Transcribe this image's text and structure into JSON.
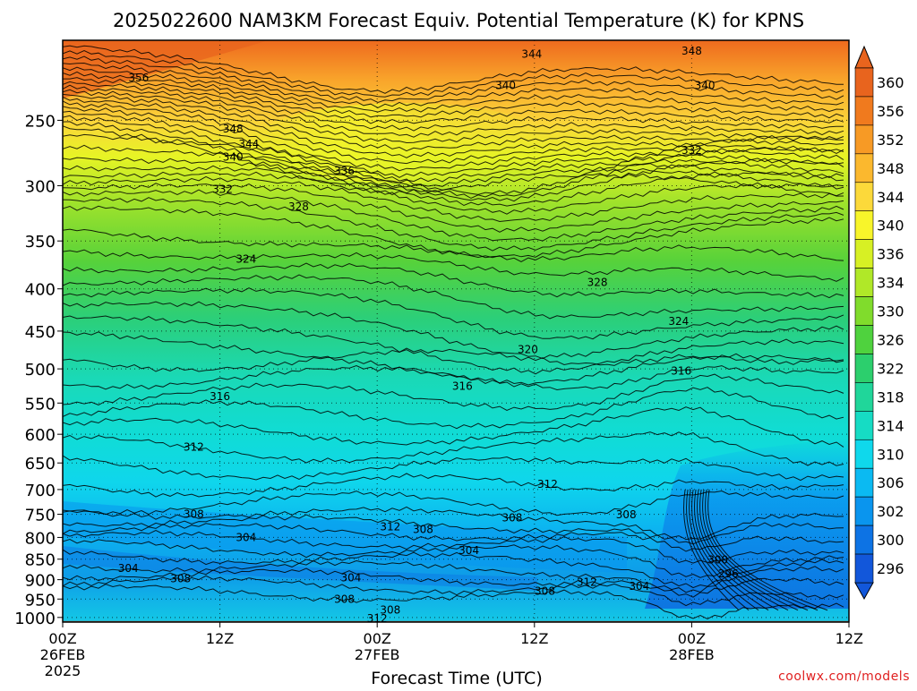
{
  "chart_data": {
    "type": "heatmap",
    "title": "2025022600 NAM3KM Forecast Equiv. Potential Temperature (K) for KPNS",
    "xlabel": "Forecast Time (UTC)",
    "ylabel": "",
    "source_credit": "coolwx.com/models",
    "x_range_hours": [
      0,
      60
    ],
    "x_ticks": [
      {
        "hour": 0,
        "lines": [
          "00Z",
          "26FEB",
          "2025"
        ]
      },
      {
        "hour": 12,
        "lines": [
          "12Z"
        ]
      },
      {
        "hour": 24,
        "lines": [
          "00Z",
          "27FEB"
        ]
      },
      {
        "hour": 36,
        "lines": [
          "12Z"
        ]
      },
      {
        "hour": 48,
        "lines": [
          "00Z",
          "28FEB"
        ]
      },
      {
        "hour": 60,
        "lines": [
          "12Z"
        ]
      }
    ],
    "y_scale": "log-pressure",
    "y_range_hpa": [
      1013,
      200
    ],
    "y_ticks": [
      250,
      300,
      350,
      400,
      450,
      500,
      550,
      600,
      650,
      700,
      750,
      800,
      850,
      900,
      950,
      1000
    ],
    "grid": true,
    "colorbar": {
      "labels": [
        360,
        356,
        352,
        348,
        344,
        340,
        336,
        334,
        330,
        326,
        322,
        318,
        314,
        310,
        306,
        302,
        300,
        296
      ],
      "colors": [
        "#e8641e",
        "#f07a1e",
        "#f79a25",
        "#fbb82e",
        "#fcd93a",
        "#f8f52a",
        "#d7f024",
        "#b0e828",
        "#80dc2c",
        "#4fd23e",
        "#2ccf6d",
        "#20d69a",
        "#16dcc4",
        "#0fd8ec",
        "#0bbaf2",
        "#0a95ee",
        "#0d73e4",
        "#1257da"
      ]
    },
    "contour_labels": [
      {
        "value": "356",
        "hour": 5.8,
        "hpa": 222
      },
      {
        "value": "348",
        "hour": 13.0,
        "hpa": 256
      },
      {
        "value": "344",
        "hour": 14.2,
        "hpa": 267
      },
      {
        "value": "340",
        "hour": 13.0,
        "hpa": 277
      },
      {
        "value": "336",
        "hour": 21.5,
        "hpa": 288
      },
      {
        "value": "332",
        "hour": 12.2,
        "hpa": 303
      },
      {
        "value": "328",
        "hour": 18.0,
        "hpa": 318
      },
      {
        "value": "324",
        "hour": 14.0,
        "hpa": 368
      },
      {
        "value": "344",
        "hour": 35.8,
        "hpa": 208
      },
      {
        "value": "348",
        "hour": 48.0,
        "hpa": 206
      },
      {
        "value": "340",
        "hour": 33.8,
        "hpa": 227
      },
      {
        "value": "340",
        "hour": 49.0,
        "hpa": 227
      },
      {
        "value": "332",
        "hour": 48.0,
        "hpa": 272
      },
      {
        "value": "328",
        "hour": 40.8,
        "hpa": 393
      },
      {
        "value": "324",
        "hour": 47.0,
        "hpa": 438
      },
      {
        "value": "320",
        "hour": 35.5,
        "hpa": 474
      },
      {
        "value": "316",
        "hour": 47.2,
        "hpa": 503
      },
      {
        "value": "316",
        "hour": 30.5,
        "hpa": 525
      },
      {
        "value": "316",
        "hour": 12.0,
        "hpa": 540
      },
      {
        "value": "312",
        "hour": 10.0,
        "hpa": 622
      },
      {
        "value": "312",
        "hour": 37.0,
        "hpa": 690
      },
      {
        "value": "308",
        "hour": 10.0,
        "hpa": 750
      },
      {
        "value": "308",
        "hour": 34.3,
        "hpa": 757
      },
      {
        "value": "308",
        "hour": 43.0,
        "hpa": 751
      },
      {
        "value": "312",
        "hour": 25.0,
        "hpa": 777
      },
      {
        "value": "308",
        "hour": 27.5,
        "hpa": 782
      },
      {
        "value": "304",
        "hour": 14.0,
        "hpa": 800
      },
      {
        "value": "304",
        "hour": 31.0,
        "hpa": 830
      },
      {
        "value": "304",
        "hour": 5.0,
        "hpa": 872
      },
      {
        "value": "308",
        "hour": 9.0,
        "hpa": 898
      },
      {
        "value": "304",
        "hour": 22.0,
        "hpa": 895
      },
      {
        "value": "300",
        "hour": 50.0,
        "hpa": 852
      },
      {
        "value": "296",
        "hour": 50.8,
        "hpa": 885
      },
      {
        "value": "312",
        "hour": 40.0,
        "hpa": 907
      },
      {
        "value": "304",
        "hour": 44.0,
        "hpa": 917
      },
      {
        "value": "308",
        "hour": 36.8,
        "hpa": 930
      },
      {
        "value": "308",
        "hour": 21.5,
        "hpa": 950
      },
      {
        "value": "308",
        "hour": 25.0,
        "hpa": 980
      },
      {
        "value": "312",
        "hour": 24.0,
        "hpa": 1003
      }
    ]
  }
}
